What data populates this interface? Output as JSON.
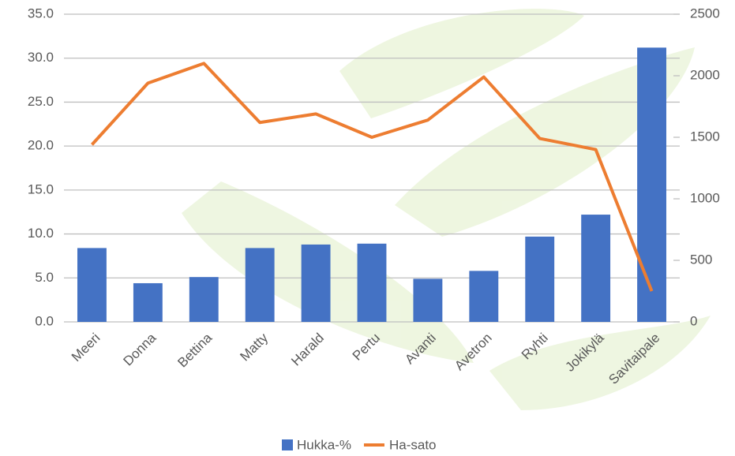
{
  "chart_data": {
    "type": "bar-line",
    "categories": [
      "Meeri",
      "Donna",
      "Bettina",
      "Matty",
      "Harald",
      "Pertu",
      "Avanti",
      "Avetron",
      "Ryhti",
      "Jokikylä",
      "Savitaipale"
    ],
    "series": [
      {
        "name": "Hukka-%",
        "type": "bar",
        "color": "#4472c4",
        "axis": "y",
        "values": [
          8.4,
          4.4,
          5.1,
          8.4,
          8.8,
          8.9,
          4.9,
          5.8,
          9.7,
          12.2,
          31.2
        ]
      },
      {
        "name": "Ha-sato",
        "type": "line",
        "color": "#ed7d31",
        "axis": "y2",
        "values": [
          1440,
          1940,
          2100,
          1620,
          1690,
          1500,
          1640,
          1990,
          1490,
          1400,
          250
        ]
      }
    ],
    "ylim": [
      0,
      35
    ],
    "yticks": [
      {
        "value": 0,
        "label": "0.0"
      },
      {
        "value": 5,
        "label": "5.0"
      },
      {
        "value": 10,
        "label": "10.0"
      },
      {
        "value": 15,
        "label": "15.0"
      },
      {
        "value": 20,
        "label": "20.0"
      },
      {
        "value": 25,
        "label": "25.0"
      },
      {
        "value": 30,
        "label": "30.0"
      },
      {
        "value": 35,
        "label": "35.0"
      }
    ],
    "y2lim": [
      0,
      2500
    ],
    "y2ticks": [
      0,
      500,
      1000,
      1500,
      2000,
      2500
    ],
    "grid": true,
    "legend": "bottom"
  }
}
